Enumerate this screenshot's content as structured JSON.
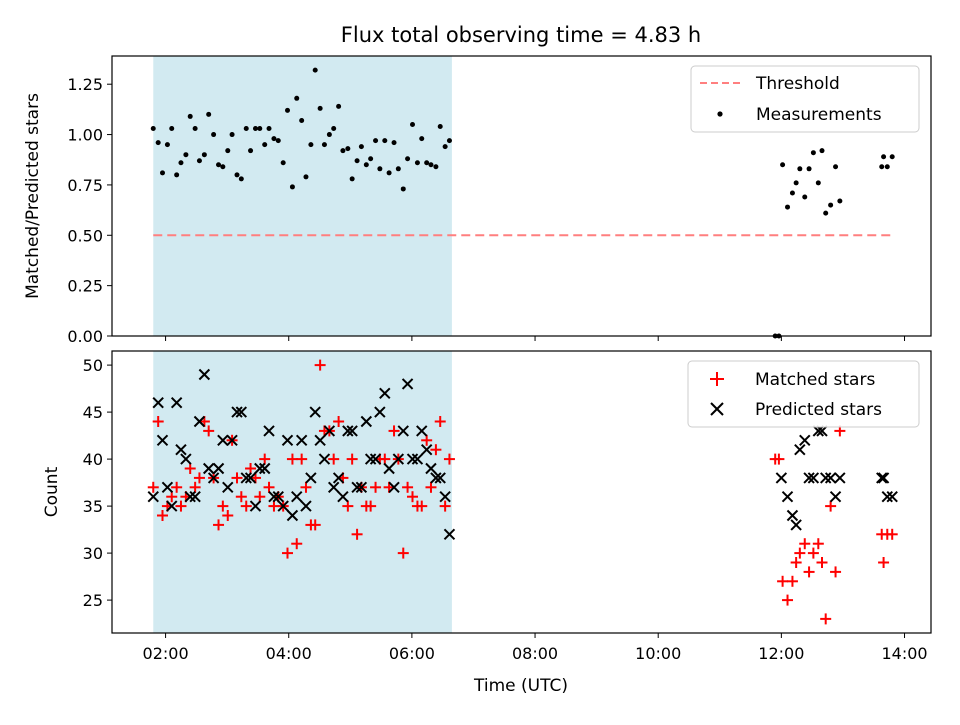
{
  "chart_data": [
    {
      "type": "scatter",
      "title": "Flux total observing time = 4.83 h",
      "xlabel": "",
      "ylabel": "Matched/Predicted stars",
      "x_unit": "hours (UTC)",
      "xlim": [
        1.13,
        14.43
      ],
      "ylim": [
        0,
        1.39
      ],
      "yticks": [
        "0.00",
        "0.25",
        "0.50",
        "0.75",
        "1.00",
        "1.25"
      ],
      "shaded_span": [
        1.8,
        6.65
      ],
      "shaded_color": "#add8e6",
      "legend_position": "upper right",
      "series": [
        {
          "name": "Threshold",
          "kind": "dashed-line",
          "color": "#ff7f7f",
          "x": [
            1.8,
            13.8
          ],
          "y": [
            0.5,
            0.5
          ]
        },
        {
          "name": "Measurements",
          "kind": "dots",
          "color": "#000000",
          "x": [
            1.8,
            1.88,
            1.95,
            2.03,
            2.1,
            2.18,
            2.25,
            2.33,
            2.4,
            2.48,
            2.55,
            2.63,
            2.7,
            2.78,
            2.86,
            2.93,
            3.01,
            3.08,
            3.16,
            3.23,
            3.31,
            3.38,
            3.46,
            3.53,
            3.61,
            3.68,
            3.76,
            3.83,
            3.91,
            3.98,
            4.06,
            4.13,
            4.21,
            4.28,
            4.36,
            4.43,
            4.51,
            4.58,
            4.66,
            4.73,
            4.81,
            4.88,
            4.96,
            5.03,
            5.11,
            5.18,
            5.26,
            5.33,
            5.41,
            5.48,
            5.56,
            5.63,
            5.71,
            5.78,
            5.86,
            5.93,
            6.01,
            6.09,
            6.16,
            6.24,
            6.31,
            6.39,
            6.46,
            6.54,
            6.61,
            11.9,
            11.96,
            12.02,
            12.1,
            12.18,
            12.24,
            12.3,
            12.38,
            12.45,
            12.52,
            12.6,
            12.66,
            12.72,
            12.8,
            12.88,
            12.95,
            13.63,
            13.66,
            13.72,
            13.8
          ],
          "y": [
            1.03,
            0.96,
            0.81,
            0.95,
            1.03,
            0.8,
            0.86,
            0.9,
            1.09,
            1.03,
            0.87,
            0.9,
            1.1,
            1.0,
            0.85,
            0.84,
            0.92,
            1.0,
            0.8,
            0.78,
            1.03,
            0.92,
            1.03,
            1.03,
            0.95,
            1.03,
            0.98,
            0.97,
            0.86,
            1.12,
            0.74,
            1.18,
            1.07,
            0.79,
            0.95,
            1.32,
            1.13,
            0.95,
            1.0,
            1.03,
            1.14,
            0.92,
            0.93,
            0.78,
            0.87,
            0.94,
            0.85,
            0.88,
            0.97,
            0.83,
            0.97,
            0.81,
            0.96,
            0.83,
            0.73,
            0.88,
            1.05,
            0.86,
            0.98,
            0.86,
            0.85,
            0.84,
            1.04,
            0.94,
            0.97,
            0.0,
            0.0,
            0.85,
            0.64,
            0.71,
            0.76,
            0.83,
            0.69,
            0.83,
            0.91,
            0.76,
            0.92,
            0.61,
            0.65,
            0.84,
            0.67,
            0.84,
            0.89,
            0.84,
            0.89
          ]
        }
      ]
    },
    {
      "type": "scatter",
      "title": "",
      "xlabel": "Time (UTC)",
      "ylabel": "Count",
      "x_unit": "hours (UTC)",
      "xlim": [
        1.13,
        14.43
      ],
      "ylim": [
        21.5,
        51.5
      ],
      "yticks": [
        "25",
        "30",
        "35",
        "40",
        "45",
        "50"
      ],
      "xticks": [
        {
          "value": 2,
          "label": "02:00"
        },
        {
          "value": 4,
          "label": "04:00"
        },
        {
          "value": 6,
          "label": "06:00"
        },
        {
          "value": 8,
          "label": "08:00"
        },
        {
          "value": 10,
          "label": "10:00"
        },
        {
          "value": 12,
          "label": "12:00"
        },
        {
          "value": 14,
          "label": "14:00"
        }
      ],
      "shaded_span": [
        1.8,
        6.65
      ],
      "shaded_color": "#add8e6",
      "legend_position": "upper right",
      "series": [
        {
          "name": "Matched stars",
          "marker": "plus",
          "color": "#ff0000",
          "x": [
            1.8,
            1.88,
            1.95,
            2.03,
            2.1,
            2.18,
            2.25,
            2.33,
            2.4,
            2.48,
            2.55,
            2.63,
            2.7,
            2.78,
            2.86,
            2.93,
            3.01,
            3.08,
            3.16,
            3.23,
            3.31,
            3.38,
            3.46,
            3.53,
            3.61,
            3.68,
            3.76,
            3.83,
            3.91,
            3.98,
            4.06,
            4.13,
            4.21,
            4.28,
            4.36,
            4.43,
            4.51,
            4.58,
            4.66,
            4.73,
            4.81,
            4.88,
            4.96,
            5.03,
            5.11,
            5.18,
            5.26,
            5.33,
            5.41,
            5.48,
            5.56,
            5.63,
            5.71,
            5.78,
            5.86,
            5.93,
            6.01,
            6.09,
            6.16,
            6.24,
            6.31,
            6.39,
            6.46,
            6.54,
            6.61,
            11.9,
            11.96,
            12.02,
            12.1,
            12.18,
            12.24,
            12.3,
            12.38,
            12.45,
            12.52,
            12.6,
            12.66,
            12.72,
            12.8,
            12.88,
            12.95,
            13.63,
            13.66,
            13.72,
            13.8
          ],
          "y": [
            37,
            44,
            34,
            35,
            36,
            37,
            35,
            36,
            39,
            37,
            38,
            44,
            43,
            38,
            33,
            35,
            34,
            42,
            38,
            36,
            35,
            39,
            38,
            36,
            40,
            37,
            35,
            36,
            35,
            30,
            40,
            31,
            40,
            37,
            33,
            33,
            50,
            43,
            43,
            40,
            44,
            38,
            35,
            40,
            32,
            37,
            35,
            35,
            37,
            40,
            40,
            37,
            43,
            40,
            30,
            37,
            36,
            35,
            35,
            42,
            37,
            41,
            44,
            35,
            40,
            40,
            40,
            27,
            25,
            27,
            29,
            30,
            31,
            28,
            30,
            31,
            29,
            23,
            35,
            28,
            43,
            32,
            29,
            32,
            32
          ]
        },
        {
          "name": "Predicted stars",
          "marker": "x",
          "color": "#000000",
          "x": [
            1.8,
            1.88,
            1.95,
            2.03,
            2.1,
            2.18,
            2.25,
            2.33,
            2.4,
            2.48,
            2.55,
            2.63,
            2.7,
            2.78,
            2.86,
            2.93,
            3.01,
            3.08,
            3.16,
            3.23,
            3.31,
            3.38,
            3.46,
            3.53,
            3.61,
            3.68,
            3.76,
            3.83,
            3.91,
            3.98,
            4.06,
            4.13,
            4.21,
            4.28,
            4.36,
            4.43,
            4.51,
            4.58,
            4.66,
            4.73,
            4.81,
            4.88,
            4.96,
            5.03,
            5.11,
            5.18,
            5.26,
            5.33,
            5.41,
            5.48,
            5.56,
            5.63,
            5.71,
            5.78,
            5.86,
            5.93,
            6.01,
            6.09,
            6.16,
            6.24,
            6.31,
            6.39,
            6.46,
            6.54,
            6.61,
            12.0,
            12.1,
            12.18,
            12.24,
            12.3,
            12.38,
            12.45,
            12.52,
            12.6,
            12.66,
            12.72,
            12.8,
            12.88,
            12.95,
            13.63,
            13.66,
            13.72,
            13.8
          ],
          "y": [
            36,
            46,
            42,
            37,
            35,
            46,
            41,
            40,
            36,
            36,
            44,
            49,
            39,
            38,
            39,
            42,
            37,
            42,
            45,
            45,
            38,
            38,
            35,
            39,
            39,
            43,
            36,
            36,
            35,
            42,
            34,
            36,
            42,
            35,
            38,
            45,
            42,
            40,
            43,
            37,
            38,
            36,
            43,
            43,
            37,
            37,
            44,
            40,
            40,
            45,
            47,
            39,
            37,
            40,
            43,
            48,
            40,
            40,
            43,
            41,
            39,
            38,
            38,
            36,
            32,
            38,
            36,
            34,
            33,
            41,
            42,
            38,
            38,
            43,
            43,
            38,
            38,
            36,
            38,
            38,
            38,
            36,
            36
          ]
        }
      ]
    }
  ]
}
